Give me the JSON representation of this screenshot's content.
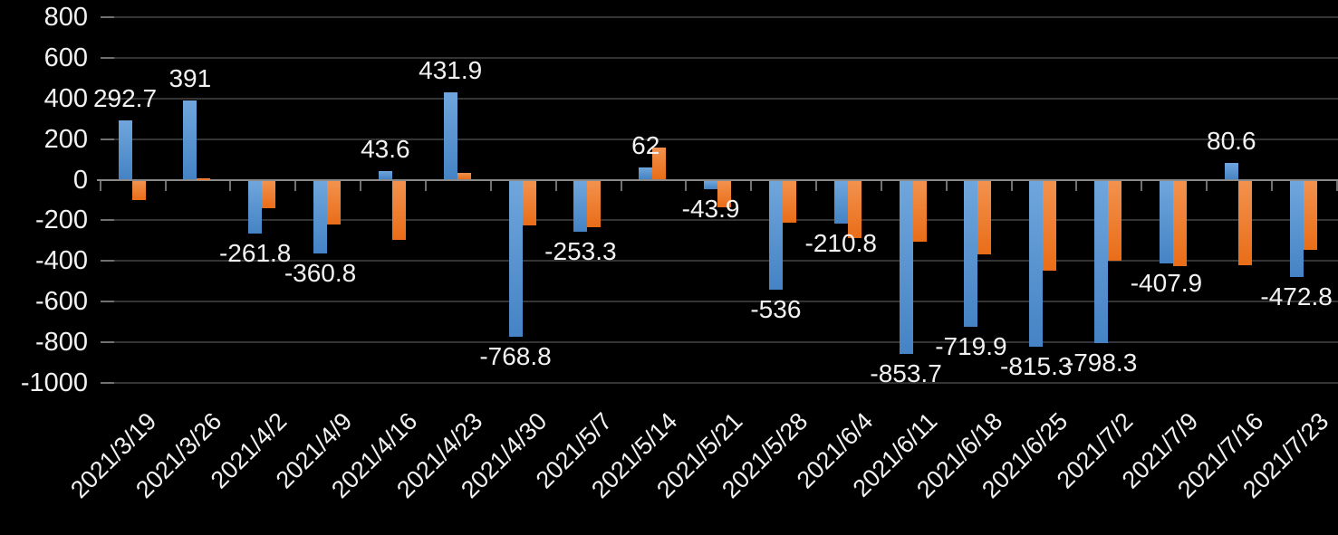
{
  "chart_data": {
    "type": "bar",
    "title": "",
    "legend": "none",
    "grid": true,
    "background_color": "#000000",
    "text_color": "#f2f2f2",
    "axis_line_color": "#8a8a8a",
    "gridline_color": "#343434",
    "categories": [
      "2021/3/19",
      "2021/3/26",
      "2021/4/2",
      "2021/4/9",
      "2021/4/16",
      "2021/4/23",
      "2021/4/30",
      "2021/5/7",
      "2021/5/14",
      "2021/5/21",
      "2021/5/28",
      "2021/6/4",
      "2021/6/11",
      "2021/6/18",
      "2021/6/25",
      "2021/7/2",
      "2021/7/9",
      "2021/7/16",
      "2021/7/23"
    ],
    "series": [
      {
        "name": "blue-series",
        "color": "#4583c5",
        "values": [
          292.7,
          391,
          -261.8,
          -360.8,
          43.6,
          431.9,
          -768.8,
          -253.3,
          62,
          -43.9,
          -536,
          -210.8,
          -853.7,
          -719.9,
          -815.3,
          -798.3,
          -407.9,
          80.6,
          -472.8
        ],
        "labels": [
          "292.7",
          "391",
          "-261.8",
          "-360.8",
          "43.6",
          "431.9",
          "-768.8",
          "-253.3",
          "62",
          "-43.9",
          "-536",
          "-210.8",
          "-853.7",
          "-719.9",
          "-815.3",
          "-798.3",
          "-407.9",
          "80.6",
          "-472.8"
        ],
        "data_labels_visible": true
      },
      {
        "name": "orange-series",
        "color": "#e96d18",
        "values": [
          -95,
          8,
          -135,
          -218,
          -290,
          35,
          -220,
          -228,
          160,
          -130,
          -205,
          -285,
          -300,
          -362,
          -442,
          -393,
          -420,
          -415,
          -340
        ],
        "data_labels_visible": false
      }
    ],
    "y_axis": {
      "range": [
        -1000,
        800
      ],
      "tick_step": 200,
      "ticks": [
        800,
        600,
        400,
        200,
        0,
        -200,
        -400,
        -600,
        -800,
        -1000
      ]
    },
    "xlabel": "",
    "ylabel": ""
  }
}
